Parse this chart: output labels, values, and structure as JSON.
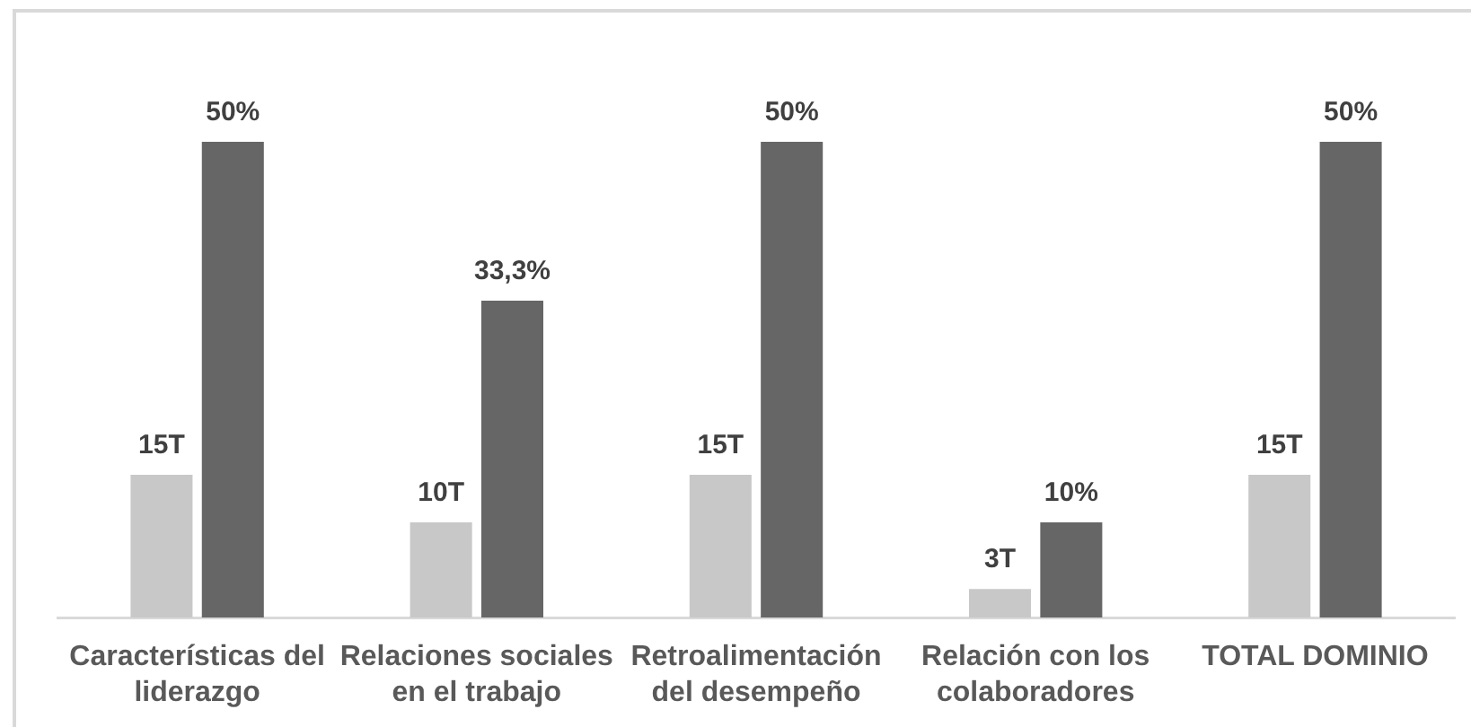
{
  "chart_data": {
    "type": "bar",
    "categories": [
      "Características del liderazgo",
      "Relaciones sociales en el trabajo",
      "Retroalimentación del desempeño",
      "Relación con los colaboradores",
      "TOTAL DOMINIO"
    ],
    "series": [
      {
        "color": "#c8c8c8",
        "values": [
          15,
          10,
          15,
          3,
          15
        ],
        "value_labels": [
          "15T",
          "10T",
          "15T",
          "3T",
          "15T"
        ]
      },
      {
        "color": "#666666",
        "values": [
          50,
          33.3,
          50,
          10,
          50
        ],
        "value_labels": [
          "50%",
          "33,3%",
          "50%",
          "10%",
          "50%"
        ]
      }
    ],
    "grid": false,
    "legend": false
  }
}
